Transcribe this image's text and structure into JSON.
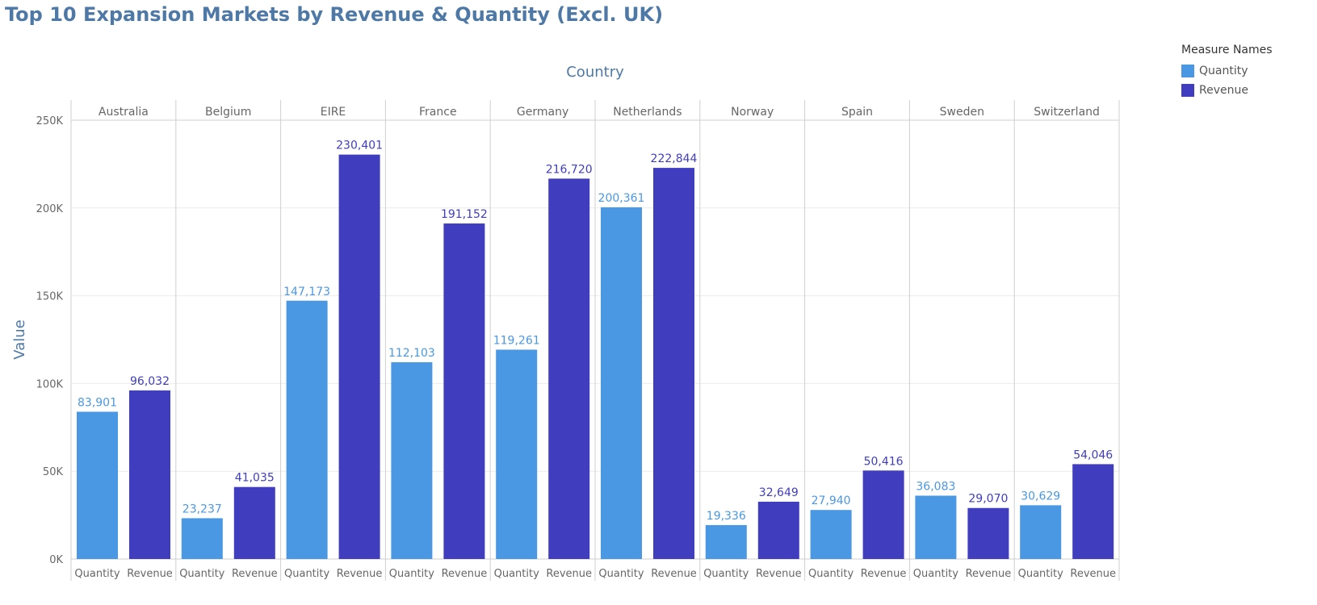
{
  "chart_data": {
    "type": "bar",
    "title": "Top 10 Expansion Markets by Revenue & Quantity (Excl. UK)",
    "column_header": "Country",
    "ylabel": "Value",
    "ylim": [
      0,
      250000
    ],
    "yticks": [
      {
        "value": 0,
        "label": "0K"
      },
      {
        "value": 50000,
        "label": "50K"
      },
      {
        "value": 100000,
        "label": "100K"
      },
      {
        "value": 150000,
        "label": "150K"
      },
      {
        "value": 200000,
        "label": "200K"
      },
      {
        "value": 250000,
        "label": "250K"
      }
    ],
    "grid": true,
    "legend_position": "top-right",
    "legend_title": "Measure Names",
    "categories": [
      "Australia",
      "Belgium",
      "EIRE",
      "France",
      "Germany",
      "Netherlands",
      "Norway",
      "Spain",
      "Sweden",
      "Switzerland"
    ],
    "series": [
      {
        "name": "Quantity",
        "color": "#4a98e3",
        "values": [
          83901,
          23237,
          147173,
          112103,
          119261,
          200361,
          19336,
          27940,
          36083,
          30629
        ],
        "labels": [
          "83,901",
          "23,237",
          "147,173",
          "112,103",
          "119,261",
          "200,361",
          "19,336",
          "27,940",
          "36,083",
          "30,629"
        ]
      },
      {
        "name": "Revenue",
        "color": "#403dbf",
        "values": [
          96032,
          41035,
          230401,
          191152,
          216720,
          222844,
          32649,
          50416,
          29070,
          54046
        ],
        "labels": [
          "96,032",
          "41,035",
          "230,401",
          "191,152",
          "216,720",
          "222,844",
          "32,649",
          "50,416",
          "29,070",
          "54,046"
        ]
      }
    ]
  }
}
